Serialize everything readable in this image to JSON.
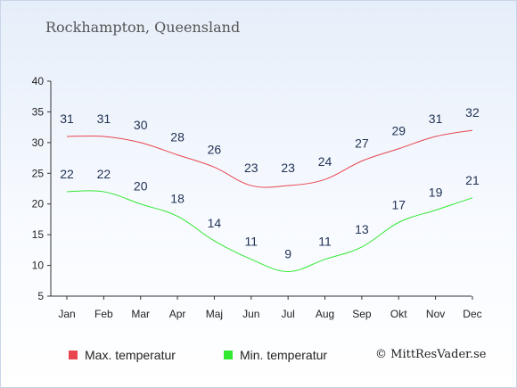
{
  "title": "Rockhampton, Queensland",
  "copyright": "© MittResVader.se",
  "chart_data": {
    "type": "line",
    "categories": [
      "Jan",
      "Feb",
      "Mar",
      "Apr",
      "Maj",
      "Jun",
      "Jul",
      "Aug",
      "Sep",
      "Okt",
      "Nov",
      "Dec"
    ],
    "ylim": [
      5,
      40
    ],
    "yticks": [
      5,
      10,
      15,
      20,
      25,
      30,
      35,
      40
    ],
    "grid": false,
    "legend_position": "bottom-left",
    "series": [
      {
        "name": "Max. temperatur",
        "color": "#e8454f",
        "values": [
          31,
          31,
          30,
          28,
          26,
          23,
          23,
          24,
          27,
          29,
          31,
          32
        ]
      },
      {
        "name": "Min. temperatur",
        "color": "#33e833",
        "values": [
          22,
          22,
          20,
          18,
          14,
          11,
          9,
          11,
          13,
          17,
          19,
          21
        ]
      }
    ]
  }
}
